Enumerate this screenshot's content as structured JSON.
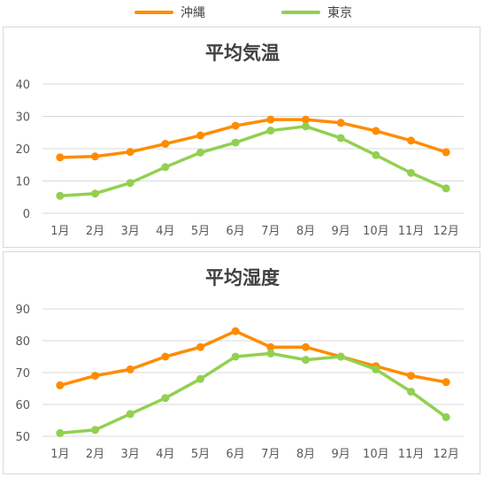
{
  "legend": [
    {
      "name": "沖縄",
      "color": "#FF8C00"
    },
    {
      "name": "東京",
      "color": "#92D050"
    }
  ],
  "chart_data": [
    {
      "type": "line",
      "title": "平均気温",
      "categories": [
        "1月",
        "2月",
        "3月",
        "4月",
        "5月",
        "6月",
        "7月",
        "8月",
        "9月",
        "10月",
        "11月",
        "12月"
      ],
      "ylim": [
        0,
        40
      ],
      "yticks": [
        0,
        10,
        20,
        30,
        40
      ],
      "grid": true,
      "legend_position": "top",
      "series": [
        {
          "name": "沖縄",
          "color": "#FF8C00",
          "values": [
            17.3,
            17.6,
            19.0,
            21.5,
            24.1,
            27.1,
            29.0,
            29.0,
            28.0,
            25.5,
            22.5,
            18.9
          ]
        },
        {
          "name": "東京",
          "color": "#92D050",
          "values": [
            5.4,
            6.1,
            9.4,
            14.3,
            18.8,
            21.9,
            25.6,
            26.9,
            23.3,
            18.0,
            12.5,
            7.7
          ]
        }
      ]
    },
    {
      "type": "line",
      "title": "平均湿度",
      "categories": [
        "1月",
        "2月",
        "3月",
        "4月",
        "5月",
        "6月",
        "7月",
        "8月",
        "9月",
        "10月",
        "11月",
        "12月"
      ],
      "ylim": [
        50,
        90
      ],
      "yticks": [
        50,
        60,
        70,
        80,
        90
      ],
      "grid": true,
      "legend_position": "top",
      "series": [
        {
          "name": "沖縄",
          "color": "#FF8C00",
          "values": [
            66,
            69,
            71,
            75,
            78,
            83,
            78,
            78,
            75,
            72,
            69,
            67
          ]
        },
        {
          "name": "東京",
          "color": "#92D050",
          "values": [
            51,
            52,
            57,
            62,
            68,
            75,
            76,
            74,
            75,
            71,
            64,
            56
          ]
        }
      ]
    }
  ]
}
